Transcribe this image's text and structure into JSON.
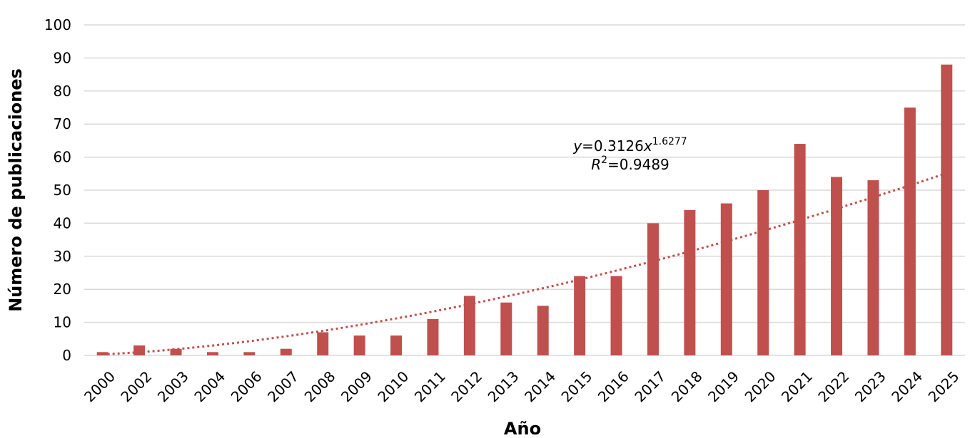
{
  "chart_data": {
    "type": "bar",
    "categories": [
      "2000",
      "2002",
      "2003",
      "2004",
      "2006",
      "2007",
      "2008",
      "2009",
      "2010",
      "2011",
      "2012",
      "2013",
      "2014",
      "2015",
      "2016",
      "2017",
      "2018",
      "2019",
      "2020",
      "2021",
      "2022",
      "2023",
      "2024",
      "2025"
    ],
    "values": [
      1,
      3,
      2,
      1,
      1,
      2,
      7,
      6,
      6,
      11,
      18,
      16,
      15,
      24,
      24,
      40,
      44,
      46,
      50,
      64,
      54,
      53,
      75,
      88
    ],
    "xlabel": "Año",
    "ylabel": "Número de publicaciones",
    "ylim": [
      0,
      100
    ],
    "yticks": [
      0,
      10,
      20,
      30,
      40,
      50,
      60,
      70,
      80,
      90,
      100
    ],
    "grid": true,
    "bar_color": "#c0504d",
    "trendline": {
      "type": "power",
      "coef": 0.3126,
      "exponent": 1.6277,
      "color": "#c0504d",
      "style": "dotted",
      "equation_y": "y",
      "equation_rhs": "=0.3126",
      "equation_x": "x",
      "equation_exp": "1.6277",
      "r2_label": "R",
      "r2_sup": "2",
      "r2_value": "=0.9489"
    }
  }
}
